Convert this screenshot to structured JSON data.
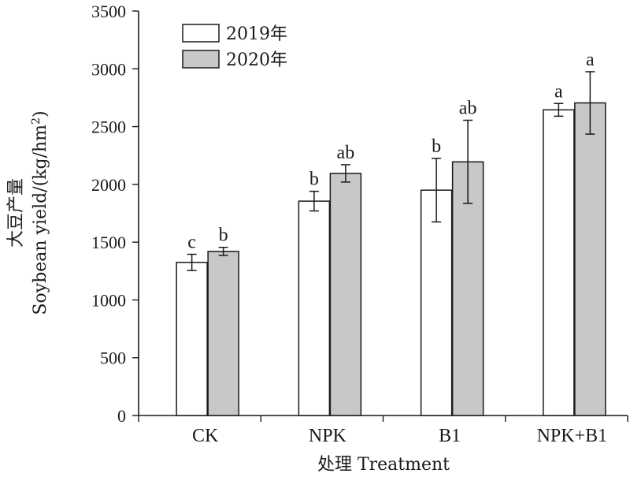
{
  "chart_data": {
    "type": "bar",
    "categories": [
      "CK",
      "NPK",
      "B1",
      "NPK+B1"
    ],
    "series": [
      {
        "name": "2019年",
        "color": "#ffffff",
        "values": [
          1325,
          1855,
          1950,
          2645
        ],
        "errors": [
          70,
          85,
          275,
          55
        ],
        "labels": [
          "c",
          "b",
          "b",
          "a"
        ]
      },
      {
        "name": "2020年",
        "color": "#c8c8c8",
        "values": [
          1420,
          2095,
          2195,
          2705
        ],
        "errors": [
          35,
          75,
          360,
          270
        ],
        "labels": [
          "b",
          "ab",
          "ab",
          "a"
        ]
      }
    ],
    "ylim": [
      0,
      3500
    ],
    "yticks": [
      0,
      500,
      1000,
      1500,
      2000,
      2500,
      3000,
      3500
    ],
    "ylabel_cn": "大豆产量",
    "ylabel_en": "Soybean yield/(kg/hm",
    "ylabel_sup": "2",
    "ylabel_close": ")",
    "xlabel": "处理 Treatment",
    "legend_position": "top-left",
    "grid": false
  }
}
